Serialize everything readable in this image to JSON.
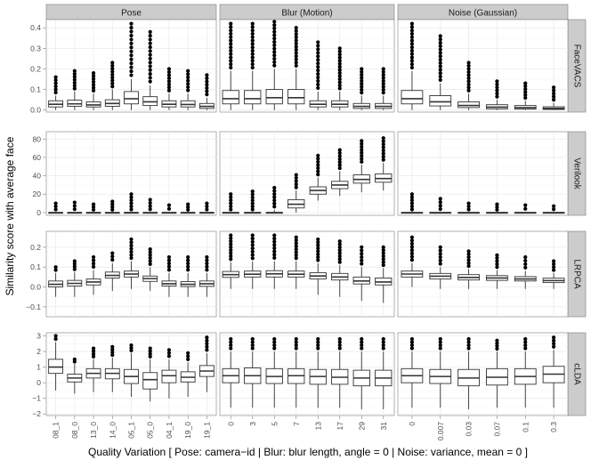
{
  "chart_data": {
    "type": "boxplot",
    "xlabel": "Quality Variation [ Pose: camera−id | Blur: blur length, angle = 0 | Noise: variance, mean = 0 ]",
    "ylabel": "Similarity score with average face",
    "columns": [
      {
        "name": "Pose",
        "categories": [
          "08_1",
          "08_0",
          "13_0",
          "14_0",
          "05_1",
          "05_0",
          "04_1",
          "19_0",
          "19_1"
        ]
      },
      {
        "name": "Blur (Motion)",
        "categories": [
          "0",
          "3",
          "5",
          "7",
          "13",
          "17",
          "29",
          "31"
        ]
      },
      {
        "name": "Noise (Gaussian)",
        "categories": [
          "0",
          "0.007",
          "0.03",
          "0.07",
          "0.1",
          "0.3"
        ]
      }
    ],
    "rows": [
      {
        "name": "FaceVACS",
        "ylim": [
          -0.01,
          0.44
        ],
        "ticks": [
          0.0,
          0.1,
          0.2,
          0.3,
          0.4
        ],
        "tick_labels": [
          "0.0",
          "0.1",
          "0.2",
          "0.3",
          "0.4"
        ]
      },
      {
        "name": "Verilook",
        "ylim": [
          -3,
          88
        ],
        "ticks": [
          0,
          20,
          40,
          60,
          80
        ],
        "tick_labels": [
          "0",
          "20",
          "40",
          "60",
          "80"
        ]
      },
      {
        "name": "LRPCA",
        "ylim": [
          -0.15,
          0.28
        ],
        "ticks": [
          -0.1,
          0.0,
          0.1,
          0.2
        ],
        "tick_labels": [
          "−0.1",
          "0.0",
          "0.1",
          "0.2"
        ]
      },
      {
        "name": "cLDA",
        "ylim": [
          -2.1,
          3.2
        ],
        "ticks": [
          -2,
          -1,
          0,
          1,
          2,
          3
        ],
        "tick_labels": [
          "−2",
          "−1",
          "0",
          "1",
          "2",
          "3"
        ]
      }
    ],
    "boxes": [
      [
        [
          [
            0.0,
            0.015,
            0.028,
            0.045,
            0.07,
            0.16
          ],
          [
            0.0,
            0.018,
            0.03,
            0.048,
            0.09,
            0.19
          ],
          [
            0.0,
            0.015,
            0.025,
            0.04,
            0.08,
            0.18
          ],
          [
            0.0,
            0.018,
            0.032,
            0.05,
            0.1,
            0.23
          ],
          [
            0.0,
            0.03,
            0.055,
            0.09,
            0.15,
            0.42
          ],
          [
            0.0,
            0.022,
            0.04,
            0.065,
            0.12,
            0.38
          ],
          [
            0.0,
            0.015,
            0.028,
            0.045,
            0.08,
            0.2
          ],
          [
            0.0,
            0.015,
            0.027,
            0.045,
            0.08,
            0.19
          ],
          [
            0.0,
            0.008,
            0.018,
            0.032,
            0.06,
            0.17
          ]
        ],
        [
          [
            0.0,
            0.03,
            0.055,
            0.095,
            0.19,
            0.42
          ],
          [
            0.0,
            0.03,
            0.055,
            0.095,
            0.19,
            0.42
          ],
          [
            0.0,
            0.03,
            0.06,
            0.1,
            0.2,
            0.43
          ],
          [
            0.0,
            0.03,
            0.06,
            0.1,
            0.2,
            0.4
          ],
          [
            0.0,
            0.015,
            0.028,
            0.045,
            0.09,
            0.33
          ],
          [
            0.0,
            0.015,
            0.028,
            0.045,
            0.09,
            0.3
          ],
          [
            0.0,
            0.008,
            0.018,
            0.032,
            0.07,
            0.2
          ],
          [
            0.0,
            0.008,
            0.018,
            0.032,
            0.07,
            0.2
          ]
        ],
        [
          [
            0.0,
            0.03,
            0.055,
            0.095,
            0.19,
            0.42
          ],
          [
            0.0,
            0.02,
            0.04,
            0.07,
            0.13,
            0.36
          ],
          [
            0.0,
            0.012,
            0.022,
            0.04,
            0.08,
            0.23
          ],
          [
            0.0,
            0.006,
            0.014,
            0.026,
            0.05,
            0.14
          ],
          [
            0.0,
            0.005,
            0.012,
            0.022,
            0.045,
            0.13
          ],
          [
            0.0,
            0.003,
            0.008,
            0.016,
            0.035,
            0.11
          ]
        ]
      ],
      [
        [
          [
            0,
            0,
            0,
            0,
            0,
            10
          ],
          [
            0,
            0,
            0,
            0,
            0,
            11
          ],
          [
            0,
            0,
            0,
            0,
            0,
            9
          ],
          [
            0,
            0,
            0,
            0,
            0,
            12
          ],
          [
            0,
            0,
            0,
            0,
            0,
            20
          ],
          [
            0,
            0,
            0,
            0,
            0,
            14
          ],
          [
            0,
            0,
            0,
            0,
            0,
            8
          ],
          [
            0,
            0,
            0,
            0,
            0,
            9
          ],
          [
            0,
            0,
            0,
            0,
            0,
            10
          ]
        ],
        [
          [
            0,
            0,
            0,
            0,
            0,
            20
          ],
          [
            0,
            0,
            0,
            0,
            0,
            23
          ],
          [
            0,
            0,
            0,
            0,
            3,
            27
          ],
          [
            0,
            5,
            9,
            14,
            24,
            41
          ],
          [
            13,
            20,
            24,
            28,
            38,
            62
          ],
          [
            18,
            26,
            30,
            34,
            45,
            68
          ],
          [
            22,
            32,
            36,
            41,
            52,
            78
          ],
          [
            24,
            33,
            37,
            42,
            54,
            81
          ]
        ],
        [
          [
            0,
            0,
            0,
            0,
            0,
            20
          ],
          [
            0,
            0,
            0,
            0,
            0,
            15
          ],
          [
            0,
            0,
            0,
            0,
            0,
            10
          ],
          [
            0,
            0,
            0,
            0,
            0,
            9
          ],
          [
            0,
            0,
            0,
            0,
            0,
            8
          ],
          [
            0,
            0,
            0,
            0,
            0,
            7
          ]
        ]
      ],
      [
        [
          [
            -0.05,
            0.0,
            0.013,
            0.03,
            0.07,
            0.1
          ],
          [
            -0.05,
            0.005,
            0.018,
            0.033,
            0.075,
            0.13
          ],
          [
            -0.04,
            0.01,
            0.025,
            0.04,
            0.085,
            0.15
          ],
          [
            -0.02,
            0.045,
            0.058,
            0.075,
            0.12,
            0.17
          ],
          [
            -0.01,
            0.05,
            0.065,
            0.08,
            0.13,
            0.24
          ],
          [
            -0.02,
            0.028,
            0.042,
            0.055,
            0.1,
            0.19
          ],
          [
            -0.05,
            0.005,
            0.016,
            0.03,
            0.07,
            0.15
          ],
          [
            -0.05,
            0.002,
            0.013,
            0.027,
            0.07,
            0.15
          ],
          [
            -0.05,
            0.003,
            0.016,
            0.03,
            0.07,
            0.15
          ]
        ],
        [
          [
            -0.01,
            0.048,
            0.062,
            0.078,
            0.125,
            0.26
          ],
          [
            -0.01,
            0.05,
            0.064,
            0.08,
            0.128,
            0.26
          ],
          [
            -0.01,
            0.05,
            0.066,
            0.082,
            0.13,
            0.26
          ],
          [
            -0.01,
            0.05,
            0.064,
            0.08,
            0.13,
            0.25
          ],
          [
            -0.04,
            0.04,
            0.055,
            0.072,
            0.12,
            0.24
          ],
          [
            -0.05,
            0.035,
            0.05,
            0.068,
            0.11,
            0.23
          ],
          [
            -0.07,
            0.015,
            0.03,
            0.05,
            0.1,
            0.2
          ],
          [
            -0.08,
            0.01,
            0.025,
            0.045,
            0.095,
            0.2
          ]
        ],
        [
          [
            0.0,
            0.05,
            0.065,
            0.08,
            0.12,
            0.25
          ],
          [
            -0.01,
            0.04,
            0.054,
            0.068,
            0.1,
            0.2
          ],
          [
            -0.01,
            0.035,
            0.048,
            0.062,
            0.09,
            0.18
          ],
          [
            -0.01,
            0.033,
            0.045,
            0.057,
            0.085,
            0.16
          ],
          [
            -0.01,
            0.03,
            0.04,
            0.052,
            0.08,
            0.15
          ],
          [
            -0.01,
            0.022,
            0.032,
            0.044,
            0.07,
            0.13
          ]
        ]
      ],
      [
        [
          [
            -0.5,
            0.6,
            1.0,
            1.5,
            2.6,
            3.0
          ],
          [
            -0.7,
            0.05,
            0.3,
            0.55,
            1.2,
            1.5
          ],
          [
            -0.6,
            0.3,
            0.6,
            0.9,
            1.5,
            2.2
          ],
          [
            -0.6,
            0.25,
            0.6,
            0.9,
            1.6,
            2.3
          ],
          [
            -0.9,
            -0.05,
            0.4,
            0.85,
            1.9,
            2.4
          ],
          [
            -1.2,
            -0.4,
            0.2,
            0.65,
            1.5,
            2.2
          ],
          [
            -1.0,
            0.0,
            0.45,
            0.8,
            1.5,
            2.1
          ],
          [
            -0.9,
            0.05,
            0.35,
            0.7,
            1.3,
            1.9
          ],
          [
            -0.6,
            0.4,
            0.75,
            1.1,
            1.9,
            2.9
          ]
        ],
        [
          [
            -1.6,
            0.0,
            0.45,
            0.9,
            2.0,
            2.8
          ],
          [
            -1.6,
            -0.05,
            0.45,
            0.95,
            2.0,
            2.8
          ],
          [
            -1.6,
            -0.05,
            0.4,
            0.9,
            2.0,
            2.8
          ],
          [
            -1.6,
            -0.05,
            0.45,
            0.9,
            2.0,
            2.8
          ],
          [
            -1.6,
            -0.1,
            0.4,
            0.85,
            2.0,
            2.8
          ],
          [
            -1.6,
            -0.1,
            0.35,
            0.85,
            2.0,
            2.8
          ],
          [
            -1.7,
            -0.2,
            0.3,
            0.8,
            2.0,
            2.8
          ],
          [
            -1.7,
            -0.2,
            0.3,
            0.8,
            2.0,
            2.8
          ]
        ],
        [
          [
            -1.6,
            0.0,
            0.45,
            0.9,
            2.0,
            2.8
          ],
          [
            -1.6,
            -0.05,
            0.4,
            0.85,
            2.0,
            2.8
          ],
          [
            -1.7,
            -0.2,
            0.3,
            0.85,
            2.0,
            2.8
          ],
          [
            -1.6,
            -0.15,
            0.35,
            0.9,
            2.0,
            2.7
          ],
          [
            -1.6,
            -0.1,
            0.4,
            0.9,
            2.0,
            2.8
          ],
          [
            -1.6,
            0.0,
            0.55,
            1.05,
            2.1,
            2.9
          ]
        ]
      ]
    ],
    "legend": "none",
    "grid": true
  }
}
